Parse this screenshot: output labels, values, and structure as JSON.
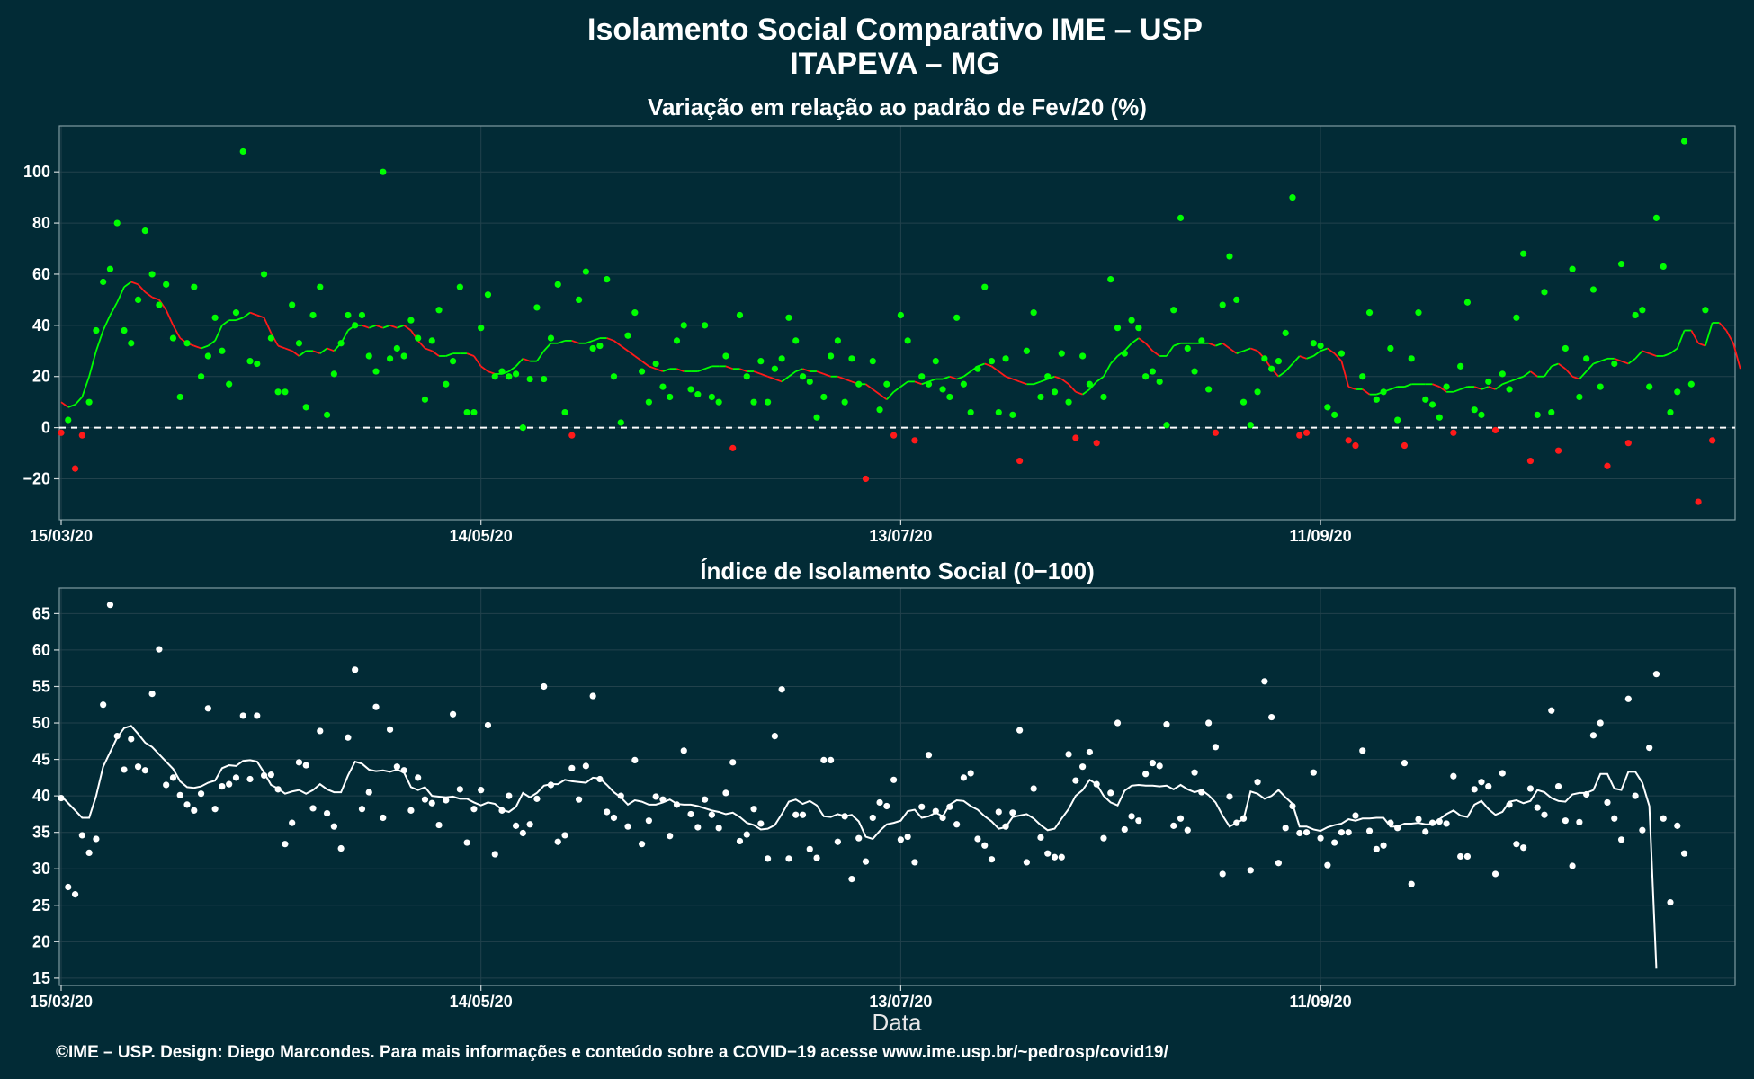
{
  "header": {
    "title": "Isolamento Social Comparativo IME – USP",
    "subtitle": "ITAPEVA – MG"
  },
  "footer": {
    "credit": "©IME – USP. Design: Diego Marcondes. Para mais informações e conteúdo sobre a COVID−19 acesse www.ime.usp.br/~pedrosp/covid19/"
  },
  "colors": {
    "background": "#022b36",
    "positive": "#00ff00",
    "negative": "#ff1a1a",
    "index_points": "#ffffff",
    "grid": "#22424c"
  },
  "chart_data": [
    {
      "type": "scatter",
      "title": "Variação em relação ao padrão de Fev/20 (%)",
      "xlabel": "",
      "ylabel": "",
      "x_start": "15/03/20",
      "x_end_day": 239,
      "x_ticks": [
        {
          "label": "15/03/20",
          "day": 0
        },
        {
          "label": "14/05/20",
          "day": 60
        },
        {
          "label": "13/07/20",
          "day": 120
        },
        {
          "label": "11/09/20",
          "day": 180
        }
      ],
      "y_ticks": [
        {
          "label": "−20",
          "value": -20
        },
        {
          "label": "0",
          "value": 0
        },
        {
          "label": "20",
          "value": 20
        },
        {
          "label": "40",
          "value": 40
        },
        {
          "label": "60",
          "value": 60
        },
        {
          "label": "80",
          "value": 80
        },
        {
          "label": "100",
          "value": 100
        }
      ],
      "ylim": [
        -36,
        118
      ],
      "reference_line": 0,
      "grid": true,
      "series": [
        {
          "values": [
            -2,
            3,
            -16,
            -3,
            10,
            38,
            57,
            62,
            80,
            38,
            33,
            50,
            77,
            60,
            48,
            56,
            35,
            12,
            33,
            55,
            20,
            28,
            43,
            30,
            17,
            45,
            108,
            26,
            25,
            60,
            35,
            14,
            14,
            48,
            33,
            8,
            44,
            55,
            5,
            21,
            33,
            44,
            40,
            44,
            28,
            22,
            100,
            27,
            31,
            28,
            42,
            35,
            11,
            34,
            46,
            17,
            26,
            55,
            6,
            6,
            39,
            52,
            20,
            22,
            20,
            21,
            0,
            19,
            47,
            19,
            35,
            56,
            6,
            -3,
            50,
            61,
            31,
            32,
            58,
            20,
            2,
            36,
            45,
            22,
            10,
            25,
            16,
            12,
            34,
            40,
            15,
            13,
            40,
            12,
            10,
            28,
            -8,
            44,
            20,
            10,
            26,
            10,
            23,
            27,
            43,
            34,
            20,
            18,
            4,
            12,
            28,
            34,
            10,
            27,
            17,
            -20,
            26,
            7,
            17,
            -3,
            44,
            34,
            -5,
            20,
            17,
            26,
            15,
            12,
            43,
            17,
            6,
            23,
            55,
            26,
            6,
            27,
            5,
            -13,
            30,
            45,
            12,
            20,
            14,
            29,
            10,
            -4,
            28,
            17,
            -6,
            12,
            58,
            39,
            29,
            42,
            39,
            20,
            22,
            18,
            1,
            46,
            82,
            31,
            22,
            34,
            15,
            -2,
            48,
            67,
            50,
            10,
            1,
            14,
            27,
            23,
            26,
            37,
            90,
            -3,
            -2,
            33,
            32,
            8,
            5,
            29,
            -5,
            -7,
            20,
            45,
            11,
            14,
            31,
            3,
            -7,
            27,
            45,
            11,
            9,
            4,
            16,
            -2,
            24,
            49,
            7,
            5,
            18,
            -1,
            21,
            15,
            43,
            68,
            -13,
            5,
            53,
            6,
            -9,
            31,
            62,
            12,
            27,
            54,
            16,
            -15,
            25,
            64,
            -6,
            44,
            46,
            16,
            82,
            63,
            6,
            14,
            112,
            17,
            -29,
            46,
            -5
          ]
        },
        {
          "values": [
            10,
            8,
            9,
            12,
            20,
            30,
            38,
            44,
            49,
            55,
            57,
            56,
            53,
            51,
            50,
            46,
            40,
            35,
            33,
            32,
            31,
            32,
            34,
            40,
            42,
            42,
            43,
            45,
            44,
            43,
            37,
            32,
            31,
            30,
            28,
            30,
            30,
            29,
            31,
            30,
            33,
            38,
            40,
            40,
            39,
            40,
            39,
            40,
            39,
            40,
            38,
            34,
            31,
            30,
            28,
            28,
            29,
            29,
            29,
            28,
            24,
            22,
            21,
            21,
            22,
            24,
            27,
            26,
            26,
            30,
            33,
            33,
            34,
            34,
            33,
            33,
            34,
            35,
            35,
            34,
            32,
            30,
            28,
            26,
            24,
            23,
            22,
            23,
            23,
            22,
            22,
            22,
            23,
            24,
            24,
            24,
            23,
            23,
            22,
            22,
            21,
            20,
            19,
            18,
            20,
            22,
            23,
            22,
            22,
            21,
            20,
            20,
            19,
            18,
            17,
            17,
            15,
            13,
            11,
            14,
            16,
            18,
            18,
            17,
            18,
            19,
            19,
            20,
            19,
            20,
            22,
            24,
            25,
            24,
            22,
            20,
            19,
            18,
            17,
            17,
            18,
            19,
            20,
            19,
            17,
            14,
            13,
            15,
            18,
            20,
            25,
            28,
            30,
            33,
            35,
            33,
            30,
            28,
            28,
            32,
            33,
            33,
            33,
            33,
            33,
            32,
            33,
            31,
            29,
            30,
            31,
            30,
            27,
            23,
            20,
            22,
            25,
            28,
            27,
            28,
            30,
            31,
            29,
            26,
            16,
            15,
            15,
            13,
            13,
            14,
            15,
            16,
            16,
            17,
            17,
            17,
            17,
            16,
            14,
            14,
            15,
            16,
            16,
            15,
            16,
            15,
            17,
            18,
            19,
            20,
            22,
            20,
            20,
            24,
            25,
            23,
            20,
            19,
            22,
            25,
            26,
            27,
            27,
            26,
            25,
            27,
            30,
            29,
            28,
            28,
            29,
            31,
            38,
            38,
            33,
            32,
            41,
            41,
            38,
            33,
            23
          ]
        }
      ]
    },
    {
      "type": "scatter",
      "title": "Índice de Isolamento Social (0−100)",
      "xlabel": "Data",
      "ylabel": "",
      "x_start": "15/03/20",
      "x_end_day": 239,
      "x_ticks": [
        {
          "label": "15/03/20",
          "day": 0
        },
        {
          "label": "14/05/20",
          "day": 60
        },
        {
          "label": "13/07/20",
          "day": 120
        },
        {
          "label": "11/09/20",
          "day": 180
        }
      ],
      "y_ticks": [
        {
          "label": "15",
          "value": 15
        },
        {
          "label": "20",
          "value": 20
        },
        {
          "label": "25",
          "value": 25
        },
        {
          "label": "30",
          "value": 30
        },
        {
          "label": "35",
          "value": 35
        },
        {
          "label": "40",
          "value": 40
        },
        {
          "label": "45",
          "value": 45
        },
        {
          "label": "50",
          "value": 50
        },
        {
          "label": "55",
          "value": 55
        },
        {
          "label": "60",
          "value": 60
        },
        {
          "label": "65",
          "value": 65
        }
      ],
      "ylim": [
        14,
        68.5
      ],
      "grid": true,
      "series": [
        {
          "values": [
            39.7,
            27.5,
            26.5,
            34.6,
            32.2,
            34.1,
            52.5,
            66.2,
            48.2,
            43.6,
            47.8,
            44,
            43.5,
            54,
            60.1,
            41.5,
            42.5,
            40.1,
            38.8,
            38,
            40.3,
            52,
            38.2,
            41.3,
            41.6,
            42.5,
            51,
            42.3,
            51,
            42.8,
            42.9,
            40.9,
            33.4,
            36.3,
            44.6,
            44.2,
            38.3,
            48.9,
            37.6,
            35.8,
            32.8,
            48,
            57.3,
            38.2,
            40.5,
            52.2,
            37,
            49.1,
            44,
            43.5,
            38,
            42.5,
            39.5,
            39,
            36,
            39.4,
            51.2,
            40.9,
            33.6,
            38.2,
            40.8,
            49.7,
            32,
            38,
            40,
            35.9,
            34.9,
            36.1,
            39.6,
            55,
            41.5,
            33.7,
            34.6,
            43.8,
            39.5,
            44.1,
            53.7,
            42.3,
            37.8,
            37,
            40,
            35.8,
            44.9,
            33.4,
            36.6,
            39.9,
            39.5,
            34.5,
            38.8,
            46.2,
            37.5,
            35.7,
            39.5,
            37.4,
            35.6,
            40.4,
            44.6,
            33.8,
            34.7,
            38.2,
            36.2,
            31.4,
            48.2,
            54.6,
            31.4,
            37.4,
            37.4,
            32.7,
            31.5,
            44.9,
            44.9,
            33.7,
            37.2,
            28.6,
            34.2,
            31,
            37,
            39.1,
            38.6,
            42.2,
            34,
            34.4,
            30.9,
            38.5,
            45.6,
            37.9,
            37,
            38.5,
            36.1,
            42.5,
            43.1,
            34.1,
            33.2,
            31.3,
            37.8,
            35.8,
            37.7,
            49,
            30.9,
            41,
            34.3,
            32.1,
            31.6,
            31.6,
            45.7,
            42.1,
            44,
            46,
            41.6,
            34.2,
            40.4,
            50,
            35.4,
            37.2,
            36.6,
            43,
            44.5,
            44.1,
            49.8,
            35.9,
            36.9,
            35.3,
            43.2,
            40.5,
            50,
            46.7,
            29.3,
            39.9,
            36.3,
            36.9,
            29.8,
            41.9,
            55.7,
            50.8,
            30.8,
            35.6,
            38.6,
            34.9,
            35,
            43.2,
            34.2,
            30.5,
            33.6,
            35,
            35,
            37.3,
            46.2,
            35.2,
            32.7,
            33.2,
            36.3,
            35.6,
            44.5,
            27.9,
            36.8,
            35.1,
            36.3,
            36.5,
            36.2,
            42.7,
            31.7,
            31.7,
            40.9,
            41.9,
            41.3,
            29.3,
            43.1,
            38.8,
            33.4,
            32.9,
            41,
            38.4,
            37.4,
            51.7,
            41.3,
            36.6,
            30.4,
            36.4,
            40.2,
            48.3,
            50,
            39.1,
            36.9,
            34,
            53.3,
            40,
            35.3,
            46.6,
            56.7,
            36.9,
            25.4,
            35.9,
            32.1
          ]
        },
        {
          "values": [
            40,
            39,
            38,
            37,
            37,
            40,
            44,
            46,
            48,
            49.3,
            49.6,
            48.5,
            47.3,
            46.7,
            45.7,
            44.7,
            43.7,
            42,
            41.2,
            41.1,
            41.3,
            41.8,
            42.1,
            43.8,
            44.2,
            44.1,
            44.8,
            44.9,
            44.7,
            43.2,
            41.5,
            41,
            40.3,
            40.6,
            40.8,
            40.3,
            40.8,
            41.6,
            40.9,
            40.5,
            40.5,
            42.8,
            44.7,
            44.4,
            43.6,
            43.4,
            43.5,
            43.3,
            43.6,
            43.2,
            41.2,
            40.8,
            41.2,
            40,
            39.9,
            39.8,
            39.9,
            39.6,
            39.6,
            39.1,
            38.7,
            39.1,
            38.9,
            38.1,
            37.8,
            38.5,
            40.4,
            39.8,
            40.4,
            41.4,
            41.6,
            41.6,
            42.2,
            42,
            41.9,
            41.8,
            42.5,
            42.4,
            41.5,
            40.5,
            39.8,
            38.8,
            39.4,
            39.2,
            38.8,
            38.8,
            39.1,
            39.5,
            38.9,
            38.8,
            38.8,
            38.6,
            38.3,
            38,
            37.8,
            37.5,
            37.7,
            37.1,
            36.3,
            36,
            35.4,
            35.5,
            36,
            37.5,
            39.2,
            39.5,
            38.9,
            39.3,
            38.7,
            37.2,
            37.1,
            37.5,
            37.2,
            37.4,
            36.5,
            34.4,
            34.1,
            35.2,
            36.1,
            36.3,
            36.6,
            37.9,
            38.1,
            37,
            37.2,
            37.7,
            37.2,
            38.8,
            39.4,
            39.3,
            38.6,
            38.1,
            37.2,
            36.5,
            35.5,
            35.7,
            37.1,
            37.3,
            37.5,
            36.9,
            36,
            35.3,
            35.5,
            36.9,
            38.2,
            40,
            40.8,
            42.2,
            41.6,
            40,
            39.1,
            38.7,
            40.7,
            41.4,
            41.5,
            41.4,
            41.4,
            41.3,
            41.4,
            40.9,
            41.5,
            40.9,
            40.5,
            40.8,
            40.1,
            39.1,
            37.3,
            35.8,
            36.3,
            36.8,
            40.6,
            40.3,
            39.6,
            40,
            40.8,
            39.8,
            38.9,
            35.8,
            35.8,
            35.4,
            35.2,
            35.7,
            36,
            36.2,
            36.8,
            36.6,
            36.9,
            36.9,
            37,
            37,
            35.8,
            35.8,
            36.2,
            36.2,
            36.3,
            36.1,
            36.1,
            36.8,
            37.5,
            38,
            37.3,
            37.1,
            38.8,
            39.3,
            38.2,
            37.4,
            37.8,
            39.2,
            39.4,
            39,
            39.3,
            40.8,
            40.5,
            39.7,
            39.3,
            39.2,
            40.2,
            40.4,
            40.4,
            40.8,
            43,
            43,
            41,
            40.8,
            43.3,
            43.3,
            41.8,
            38.6,
            16.3
          ]
        }
      ]
    }
  ]
}
